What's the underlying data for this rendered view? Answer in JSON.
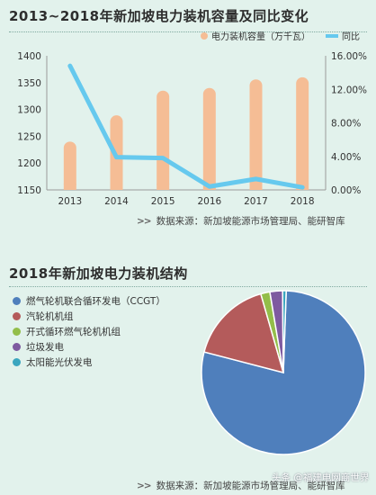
{
  "chart_data": [
    {
      "type": "bar",
      "title": "2013~2018年新加坡电力装机容量及同比变化",
      "categories": [
        "2013",
        "2014",
        "2015",
        "2016",
        "2017",
        "2018"
      ],
      "series": [
        {
          "name": "电力装机容量（万千瓦）",
          "type": "bar",
          "values": [
            1240,
            1289,
            1335,
            1340,
            1356,
            1360
          ],
          "color": "#f5bd95"
        },
        {
          "name": "同比",
          "type": "line",
          "axis": "right",
          "values": [
            14.8,
            3.9,
            3.8,
            0.4,
            1.3,
            0.3
          ],
          "color": "#66c9ee"
        }
      ],
      "ylim": [
        1150,
        1400
      ],
      "yticks": [
        "1150",
        "1200",
        "1250",
        "1300",
        "1350",
        "1400"
      ],
      "y2lim": [
        0,
        16
      ],
      "y2ticks": [
        "0.00%",
        "4.00%",
        "8.00%",
        "12.00%",
        "16.00%"
      ],
      "legend": "top-right",
      "source": "数据来源：新加坡能源市场管理局、能研智库"
    },
    {
      "type": "pie",
      "title": "2018年新加坡电力装机结构",
      "labels": [
        "燃气轮机联合循环发电（CCGT）",
        "汽轮机机组",
        "开式循环燃气轮机机组",
        "垃圾发电",
        "太阳能光伏发电"
      ],
      "values": [
        78.5,
        16.5,
        1.8,
        2.5,
        0.7
      ],
      "colors": [
        "#4f7fbc",
        "#b45b5b",
        "#93be4a",
        "#7e5aa0",
        "#3ba6bf"
      ],
      "legend": "left",
      "source": "数据来源：新加坡能源市场管理局、能研智库"
    }
  ],
  "watermark": "头条 @福建电网商世界"
}
